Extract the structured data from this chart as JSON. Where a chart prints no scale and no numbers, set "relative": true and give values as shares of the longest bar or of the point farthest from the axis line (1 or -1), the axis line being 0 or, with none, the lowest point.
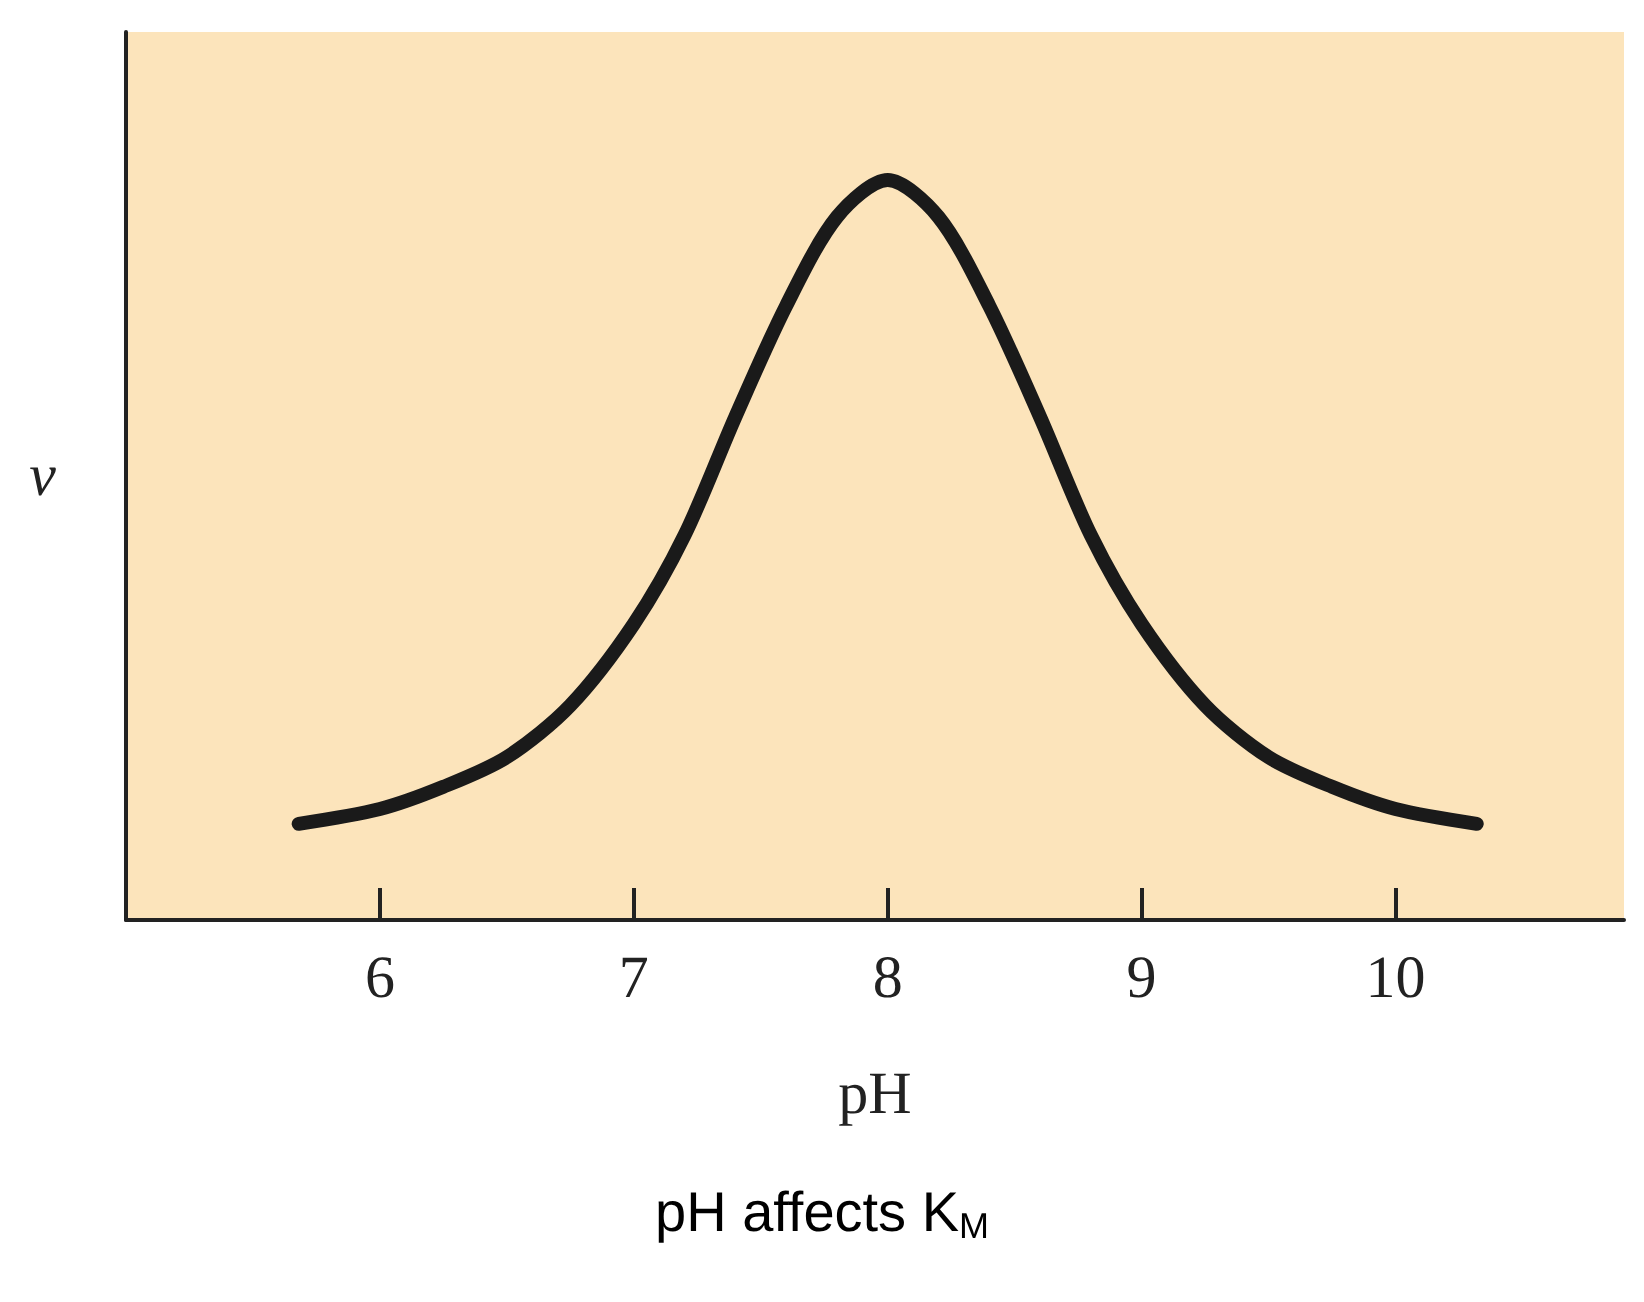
{
  "chart_data": {
    "type": "line",
    "title": "pH affects K$_{M}$",
    "xlabel": "pH",
    "ylabel": "v",
    "relative": true,
    "xlim": [
      5,
      10.9
    ],
    "xticks": [
      6,
      7,
      8,
      9,
      10
    ],
    "grid": false,
    "line_style": "solid",
    "x": [
      5.68,
      6.0,
      6.25,
      6.5,
      6.75,
      7.0,
      7.2,
      7.4,
      7.6,
      7.8,
      8.0,
      8.2,
      8.4,
      8.6,
      8.8,
      9.0,
      9.25,
      9.5,
      9.75,
      10.0,
      10.32
    ],
    "series": [
      {
        "color": "#1a1a1a",
        "values": [
          0.13,
          0.15,
          0.18,
          0.22,
          0.29,
          0.4,
          0.52,
          0.68,
          0.83,
          0.95,
          1.0,
          0.95,
          0.83,
          0.68,
          0.52,
          0.4,
          0.29,
          0.22,
          0.18,
          0.15,
          0.13
        ]
      }
    ]
  }
}
